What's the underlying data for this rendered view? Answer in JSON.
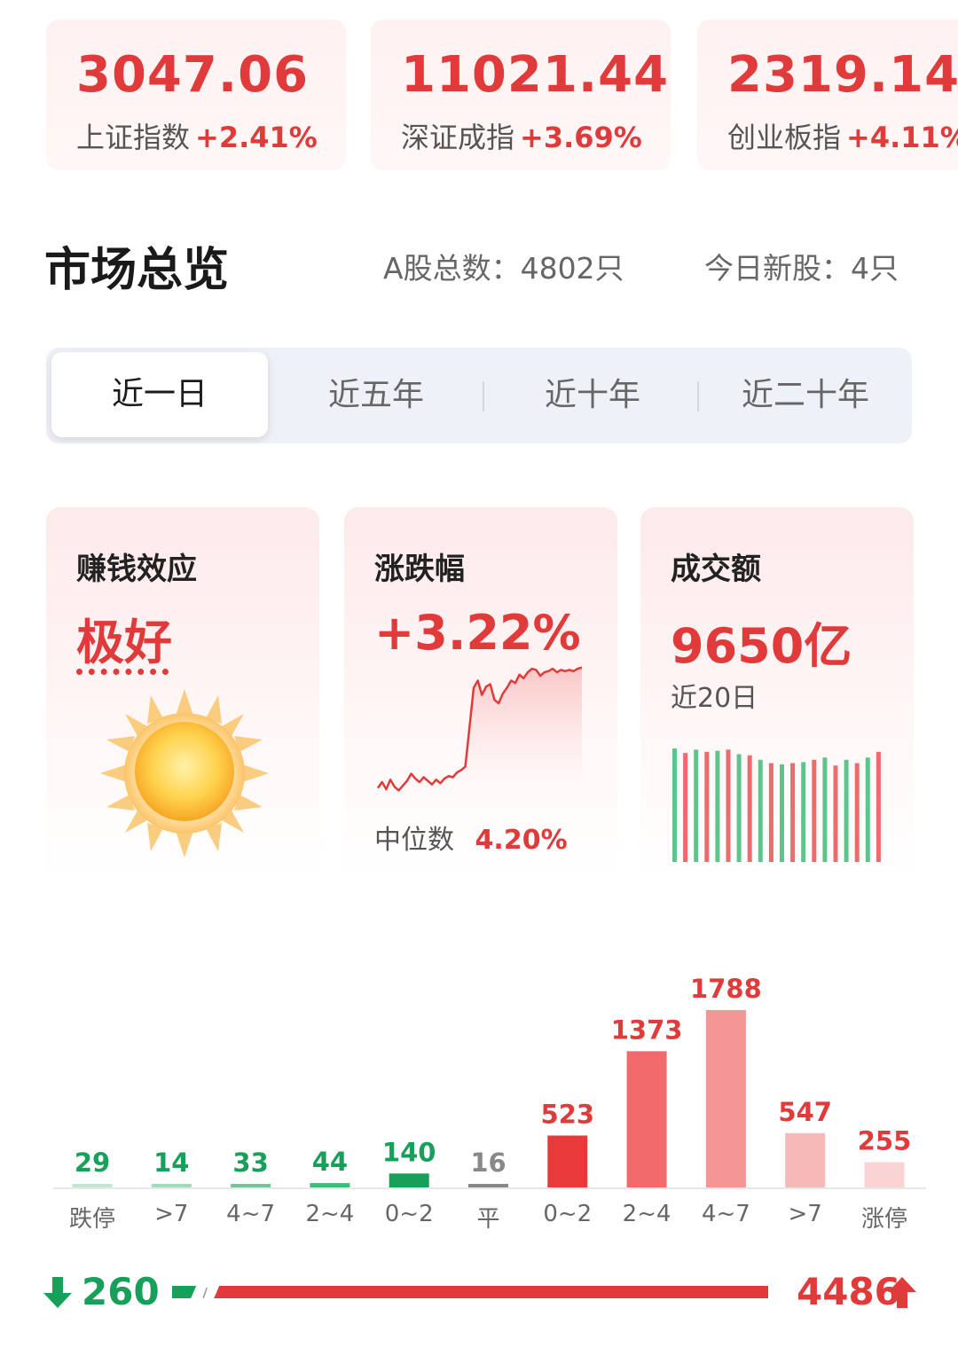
{
  "indices": [
    {
      "value": "3047.06",
      "name": "上证指数",
      "change": "+2.41%"
    },
    {
      "value": "11021.44",
      "name": "深证成指",
      "change": "+3.69%"
    },
    {
      "value": "2319.14",
      "name": "创业板指",
      "change": "+4.11%"
    }
  ],
  "overview": {
    "title": "市场总览",
    "total_stocks": "A股总数：4802只",
    "new_stocks": "今日新股：4只"
  },
  "tabs": [
    {
      "label": "近一日",
      "active": true
    },
    {
      "label": "近五年",
      "active": false
    },
    {
      "label": "近十年",
      "active": false
    },
    {
      "label": "近二十年",
      "active": false
    }
  ],
  "cards": {
    "sentiment": {
      "title": "赚钱效应",
      "value": "极好",
      "icon": "sun-icon"
    },
    "change": {
      "title": "涨跌幅",
      "value": "+3.22%",
      "median_label": "中位数",
      "median_value": "4.20%"
    },
    "volume": {
      "title": "成交额",
      "value": "9650亿",
      "period": "近20日"
    }
  },
  "colors": {
    "up": "#e03a3a",
    "down": "#17a05a",
    "flat": "#888888"
  },
  "chart_data": [
    {
      "type": "line",
      "x": [
        0,
        1,
        2,
        3,
        4,
        5,
        6,
        7,
        8,
        9,
        10,
        11,
        12,
        13,
        14,
        15,
        16,
        17,
        18,
        19,
        20,
        21,
        22,
        23,
        24,
        25,
        26,
        27,
        28,
        29,
        30,
        31,
        32,
        33,
        34,
        35,
        36,
        37,
        38,
        39,
        40,
        41,
        42,
        43,
        44,
        45,
        46,
        47,
        48,
        49
      ],
      "y": [
        0.4,
        0.9,
        0.3,
        1.1,
        0.5,
        0.2,
        0.6,
        1.0,
        1.6,
        1.2,
        0.9,
        1.3,
        1.0,
        0.7,
        1.1,
        0.8,
        1.2,
        1.4,
        1.3,
        1.7,
        1.9,
        2.2,
        5.5,
        8.8,
        9.4,
        8.2,
        8.9,
        9.1,
        7.8,
        7.5,
        8.3,
        8.8,
        9.4,
        9.2,
        9.9,
        9.6,
        10.1,
        10.4,
        10.3,
        9.8,
        10.1,
        10.2,
        10.4,
        10.1,
        10.3,
        10.2,
        10.3,
        10.2,
        10.4,
        10.5
      ]
    },
    {
      "type": "bar",
      "values": [
        100,
        96,
        99,
        97,
        98,
        99,
        95,
        94,
        90,
        87,
        86,
        87,
        88,
        90,
        92,
        85,
        90,
        87,
        92,
        97
      ],
      "colors": [
        "down",
        "up",
        "down",
        "up",
        "down",
        "up",
        "down",
        "up",
        "down",
        "up",
        "down",
        "up",
        "down",
        "up",
        "down",
        "up",
        "down",
        "up",
        "down",
        "up"
      ]
    },
    {
      "type": "bar",
      "categories": [
        "跌停",
        ">7",
        "4~7",
        "2~4",
        "0~2",
        "平",
        "0~2",
        "2~4",
        "4~7",
        ">7",
        "涨停"
      ],
      "values": [
        29,
        14,
        33,
        44,
        140,
        16,
        523,
        1373,
        1788,
        547,
        255
      ],
      "colors": [
        "#bfe8d2",
        "#9fdcbc",
        "#6cca9a",
        "#3fba79",
        "#17a05a",
        "#888888",
        "#e83a3a",
        "#f26a6a",
        "#f59595",
        "#f7b8b8",
        "#fad4d4"
      ],
      "label_colors": [
        "down",
        "down",
        "down",
        "down",
        "down",
        "flat",
        "up",
        "up",
        "up",
        "up",
        "up"
      ]
    }
  ],
  "summary": {
    "down_count": "260",
    "up_count": "4486",
    "up_ratio": 0.945
  }
}
